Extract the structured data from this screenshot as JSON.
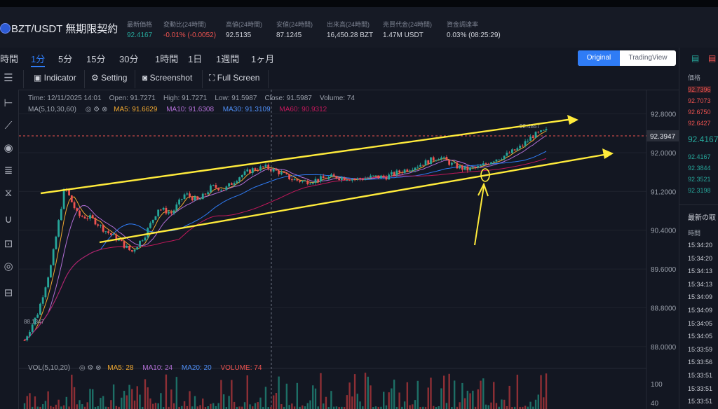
{
  "header": {
    "pair": "BZT/USDT 無期限契約",
    "stats": [
      {
        "label": "最新価格",
        "value": "92.4167",
        "color": "green"
      },
      {
        "label": "変動比(24時間)",
        "value": "-0.01% (-0.0052)",
        "color": "red"
      },
      {
        "label": "高値(24時間)",
        "value": "92.5135",
        "color": ""
      },
      {
        "label": "安値(24時間)",
        "value": "87.1245",
        "color": ""
      },
      {
        "label": "出来高(24時間)",
        "value": "16,450.28 BZT",
        "color": ""
      },
      {
        "label": "売買代金(24時間)",
        "value": "1.47M USDT",
        "color": ""
      },
      {
        "label": "資金調達率",
        "value": "0.03% (08:25:29)",
        "color": ""
      }
    ]
  },
  "timeframes": [
    "時間",
    "1分",
    "5分",
    "15分",
    "30分",
    "1時間",
    "1日",
    "1週間",
    "1ヶ月"
  ],
  "active_timeframe": "1分",
  "view": {
    "original": "Original",
    "tradingview": "TradingView"
  },
  "tools": {
    "indicator": "Indicator",
    "setting": "Setting",
    "screenshot": "Screenshot",
    "fullscreen": "Full Screen"
  },
  "left_tool_icons": [
    "menu-icon",
    "horizontal-line-icon",
    "trend-line-icon",
    "circle-icon",
    "fibonacci-icon",
    "pattern-icon",
    "magnet-icon",
    "lock-icon",
    "eye-icon",
    "trash-icon"
  ],
  "candle_info": {
    "time": "Time: 12/11/2025 14:01",
    "open": "Open: 91.7271",
    "high": "High: 91.7271",
    "low": "Low: 91.5987",
    "close": "Close: 91.5987",
    "volume": "Volume: 74"
  },
  "ma_info": {
    "label": "MA(5,10,30,60)",
    "ma5": "MA5: 91.6629",
    "ma10": "MA10: 91.6308",
    "ma30": "MA30: 91.3109",
    "ma60": "MA60: 90.9312"
  },
  "vol_info": {
    "label": "VOL(5,10,20)",
    "ma5": "MA5: 28",
    "ma10": "MA10: 24",
    "ma20": "MA20: 20",
    "volume": "VOLUME: 74"
  },
  "colors": {
    "up": "#26a69a",
    "down": "#ef5350",
    "ma5": "#f0a830",
    "ma10": "#b26fd6",
    "ma30": "#2f7cf6",
    "ma60": "#c2185b",
    "annotation": "#ffeb3b"
  },
  "price_axis": [
    "92.8000",
    "92.0000",
    "91.2000",
    "90.4000",
    "89.6000",
    "88.8000",
    "88.0000"
  ],
  "current_price": "92.3947",
  "low_marker": "88.1347",
  "peak_marker": "92.4857",
  "volume_axis": [
    "100",
    "40"
  ],
  "chart_data": {
    "type": "candlestick",
    "ylim": [
      87.55,
      93.3
    ],
    "price_points": [
      88.13,
      88.7,
      89.7,
      91.3,
      90.7,
      90.65,
      90.4,
      90.2,
      89.95,
      90.3,
      90.85,
      90.75,
      91.15,
      91.0,
      91.3,
      91.25,
      91.5,
      91.65,
      91.7,
      91.6,
      91.45,
      91.4,
      91.45,
      91.5,
      91.48,
      91.45,
      91.5,
      91.5,
      91.6,
      91.7,
      91.8,
      91.92,
      91.75,
      91.65,
      91.7,
      91.85,
      91.95,
      92.1,
      92.35,
      92.45
    ]
  },
  "right_panel": {
    "price_header": "価格",
    "asks": [
      "92.7396",
      "92.7073",
      "92.6750",
      "92.6427"
    ],
    "mid": "92.4167",
    "bids": [
      "92.4167",
      "92.3844",
      "92.3521",
      "92.3198"
    ],
    "trades_title": "最新の取",
    "time_header": "時間",
    "times": [
      "15:34:20",
      "15:34:20",
      "15:34:13",
      "15:34:13",
      "15:34:09",
      "15:34:09",
      "15:34:05",
      "15:34:05",
      "15:33:59",
      "15:33:56",
      "15:33:51",
      "15:33:51",
      "15:33:51"
    ]
  }
}
